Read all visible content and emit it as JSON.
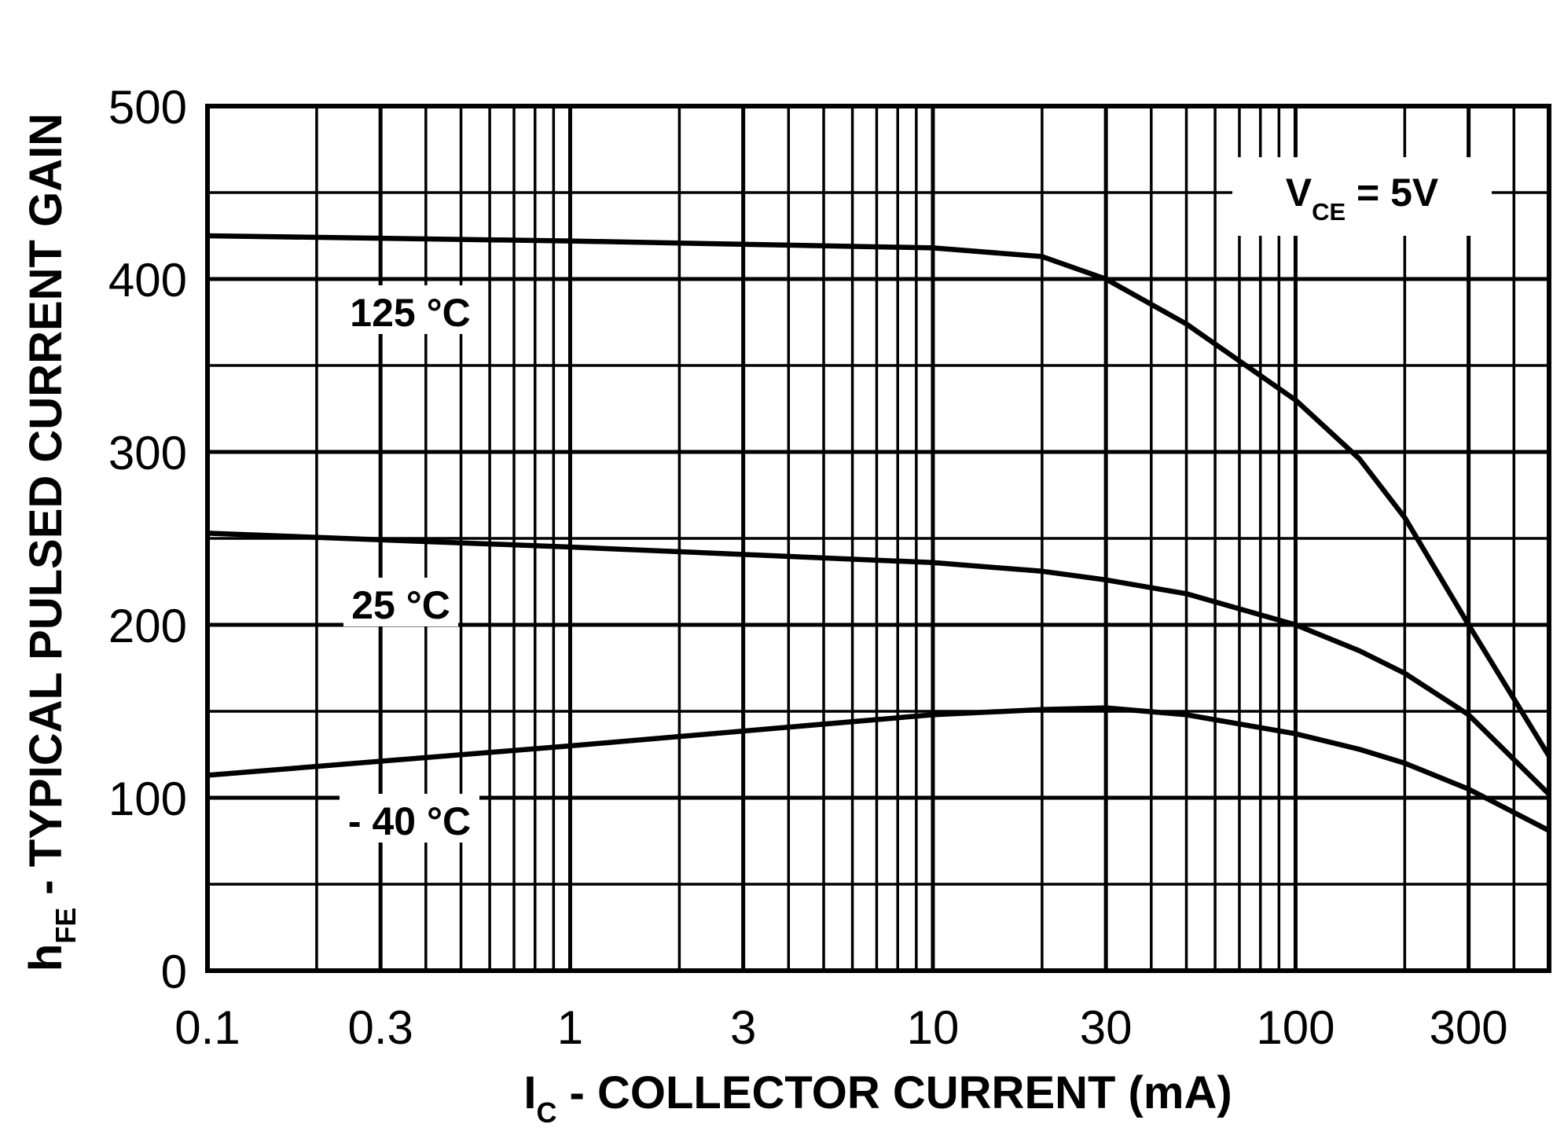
{
  "chart_data": {
    "type": "line",
    "x_label": {
      "main": "I",
      "subscript": "C",
      "suffix": " - COLLECTOR CURRENT  (mA)"
    },
    "y_label": {
      "main": "h",
      "subscript": "FE",
      "suffix": " - TYPICAL PULSED CURRENT GAIN"
    },
    "condition": {
      "main": "V",
      "subscript": "CE",
      "suffix": " = 5V"
    },
    "log_x": true,
    "grid": true,
    "xlim": [
      0.1,
      500
    ],
    "xticks": [
      0.1,
      0.3,
      1,
      3,
      10,
      30,
      100,
      300
    ],
    "x_minor_grid": [
      0.2,
      0.4,
      0.5,
      0.6,
      0.7,
      0.8,
      0.9,
      2,
      4,
      5,
      6,
      7,
      8,
      9,
      20,
      40,
      50,
      60,
      70,
      80,
      90,
      200,
      400
    ],
    "ylim": [
      0,
      500
    ],
    "yticks": [
      0,
      100,
      200,
      300,
      400,
      500
    ],
    "y_minor_grid": [
      50,
      150,
      250,
      350,
      450
    ],
    "x": [
      0.1,
      1,
      10,
      20,
      30,
      50,
      100,
      150,
      200,
      300,
      500
    ],
    "series": [
      {
        "name": "125 °C",
        "color": "#000000",
        "values": [
          425,
          422,
          418,
          413,
          400,
          374,
          330,
          296,
          262,
          200,
          124
        ]
      },
      {
        "name": "25 °C",
        "color": "#000000",
        "values": [
          253,
          245,
          236,
          231,
          226,
          218,
          200,
          185,
          172,
          148,
          102
        ]
      },
      {
        "name": "- 40 °C",
        "color": "#000000",
        "values": [
          113,
          130,
          148,
          151,
          152,
          148,
          137,
          128,
          120,
          105,
          81
        ]
      }
    ]
  }
}
